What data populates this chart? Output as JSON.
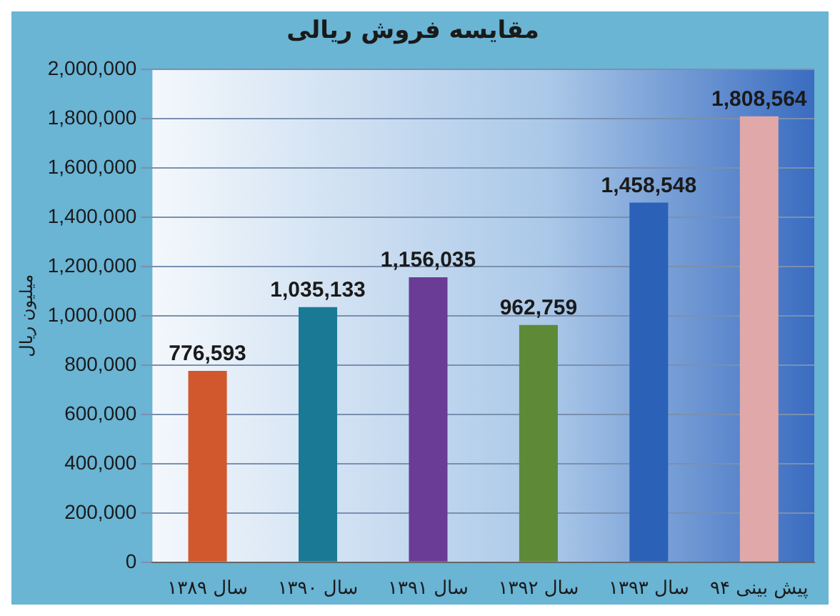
{
  "chart_data": {
    "type": "bar",
    "title": "مقایسه فروش ریالی",
    "ylabel": "میلیون ریال",
    "categories": [
      "سال ۱۳۸۹",
      "سال ۱۳۹۰",
      "سال ۱۳۹۱",
      "سال ۱۳۹۲",
      "سال ۱۳۹۳",
      "پیش بینی ۹۴"
    ],
    "values": [
      776593,
      1035133,
      1156035,
      962759,
      1458548,
      1808564
    ],
    "value_labels": [
      "776,593",
      "1,035,133",
      "1,156,035",
      "962,759",
      "1,458,548",
      "1,808,564"
    ],
    "colors": [
      "#d0582c",
      "#1a7a96",
      "#6a3c96",
      "#5e8a38",
      "#2b62b8",
      "#e0a8a8"
    ],
    "ylim": [
      0,
      2000000
    ],
    "yticks": [
      0,
      {
        "value": 200000,
        "label": "200,000"
      },
      {
        "value": 400000,
        "label": "400,000"
      },
      {
        "value": 600000,
        "label": "600,000"
      },
      {
        "value": 800000,
        "label": "800,000"
      },
      {
        "value": 1000000,
        "label": "1,000,000"
      },
      {
        "value": 1200000,
        "label": "1,200,000"
      },
      {
        "value": 1400000,
        "label": "1,400,000"
      },
      {
        "value": 1600000,
        "label": "1,600,000"
      },
      {
        "value": 1800000,
        "label": "1,800,000"
      },
      {
        "value": 2000000,
        "label": "2,000,000"
      }
    ],
    "grid": "y"
  }
}
